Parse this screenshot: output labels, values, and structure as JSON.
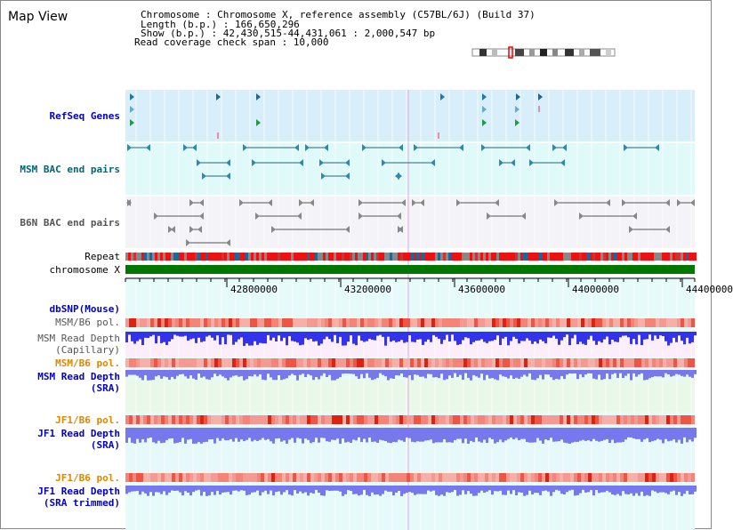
{
  "title": "Map View",
  "header": {
    "line1": "Chromosome     : Chromosome X, reference assembly (C57BL/6J) (Build 37)",
    "line2": "Length (b.p.) : 166,650,296",
    "line3": "  Show (b.p.) : 42,430,515-44,431,061 : 2,000,547 bp",
    "line4": "Read coverage check span : 10,000"
  },
  "tracks": {
    "refseq": "RefSeq Genes",
    "msm_bac": "MSM BAC end pairs",
    "b6n_bac": "B6N BAC end pairs",
    "repeat": "Repeat",
    "chromosome": "chromosome X",
    "dbsnp": "dbSNP(Mouse)",
    "msm_b6_pol_1": "MSM/B6 pol.",
    "msm_depth_cap_1": "MSM Read Depth",
    "msm_depth_cap_2": "(Capillary)",
    "msm_b6_pol_2": "MSM/B6 pol.",
    "msm_depth_sra_1": "MSM Read Depth",
    "msm_depth_sra_2": "(SRA)",
    "jf1_b6_pol_1": "JF1/B6 pol.",
    "jf1_depth_sra_1": "JF1 Read Depth",
    "jf1_depth_sra_2": "(SRA)",
    "jf1_b6_pol_2": "JF1/B6 pol.",
    "jf1_depth_trim_1": "JF1 Read Depth",
    "jf1_depth_trim_2": "(SRA trimmed)"
  },
  "axis": {
    "ticks": [
      "42800000",
      "43200000",
      "43600000",
      "44000000",
      "44400000"
    ]
  },
  "colors": {
    "blue_label": "#0000cc",
    "teal_label": "#006677",
    "gray_label": "#555555",
    "orange_label": "#dd8800",
    "refseq_bg": "#d8eefa",
    "msm_bg": "#e0fafa",
    "b6n_bg": "#f4f4f8",
    "chromosome_bar": "#007700",
    "depth_blue": "#3333ee",
    "depth_light": "#7777ee"
  }
}
